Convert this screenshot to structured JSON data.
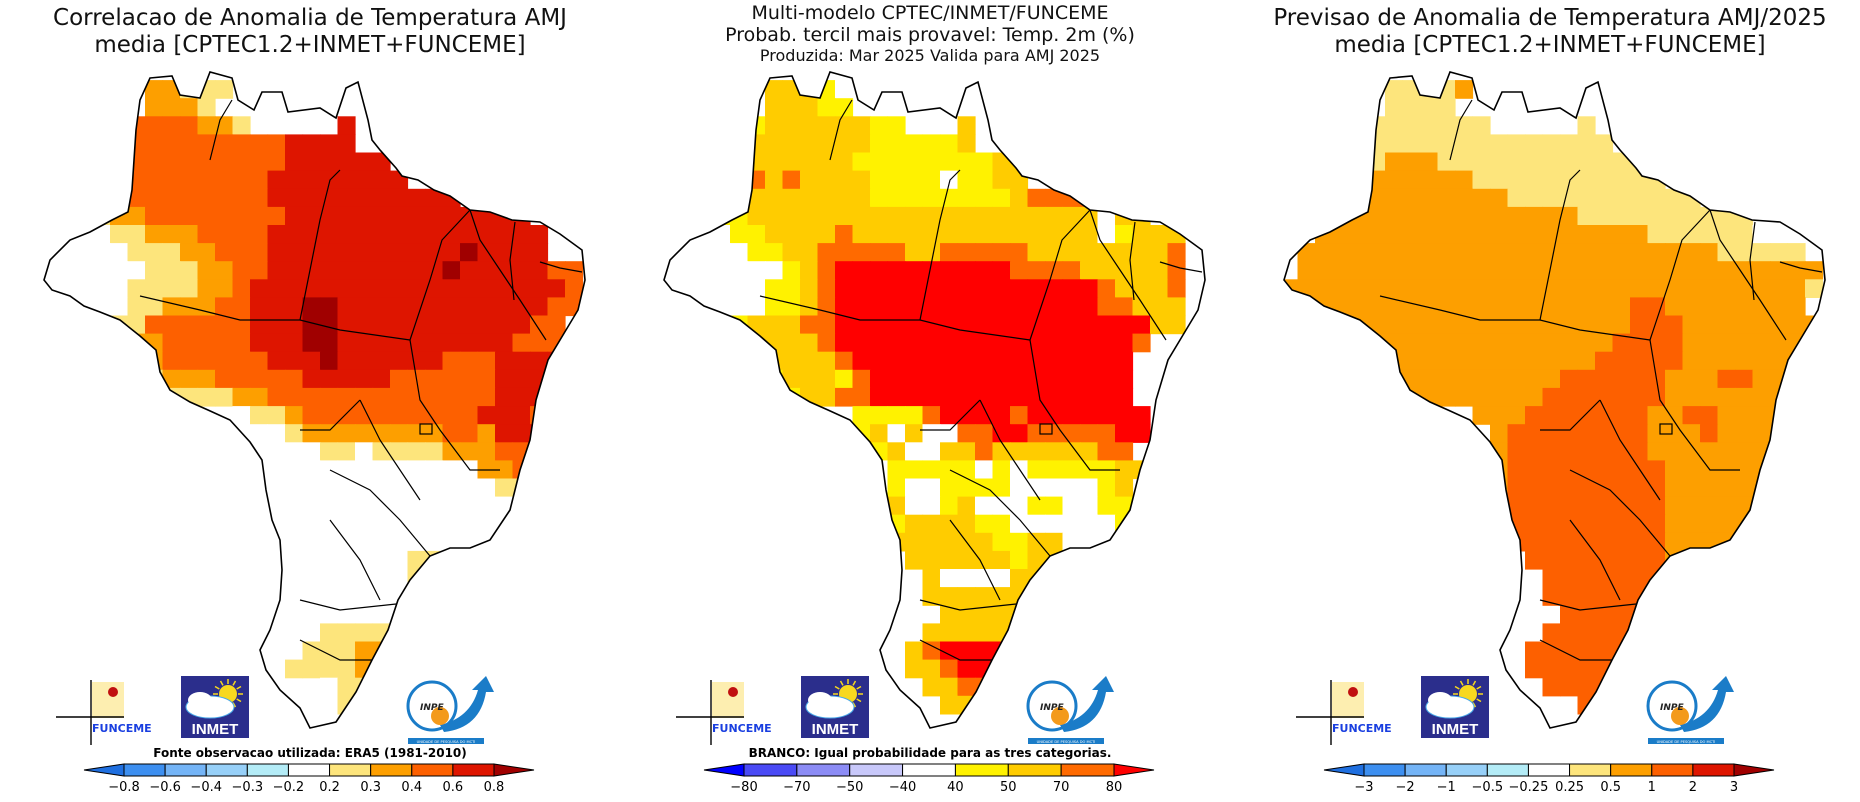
{
  "chart_data": [
    {
      "type": "heatmap",
      "id": "correlation",
      "title": [
        "Correlacao de Anomalia de Temperatura AMJ",
        "media [CPTEC1.2+INMET+FUNCEME]"
      ],
      "note": "Fonte observacao utilizada: ERA5 (1981-2010)",
      "colorbar": {
        "ticks": [
          "-0.8",
          "-0.6",
          "-0.4",
          "-0.3",
          "-0.2",
          "0.2",
          "0.3",
          "0.4",
          "0.6",
          "0.8"
        ],
        "colors": [
          "#1f6fe0",
          "#3d8ff0",
          "#74b4f6",
          "#97d0f8",
          "#b4ecf7",
          "#ffffff",
          "#fde57c",
          "#fd9f00",
          "#fd6000",
          "#de1500",
          "#a00000"
        ]
      },
      "legend_keys": {
        ".": "outside",
        "W": "#ffffff",
        "1": "#fde57c",
        "2": "#fd9f00",
        "3": "#fd6000",
        "4": "#de1500",
        "5": "#a00000"
      },
      "grid": [
        "................................",
        "......22111.....................",
        "......2221......................",
        "...233333221.....4..............",
        "..2333333333334444..............",
        "..233333333333444444............",
        "..2233333333344444444...........",
        "..1233333333344444444444........",
        "..11223333333344444444444444....",
        "..WW1122233334444444444444444...",
        ".WWWW111223334444444444454444...",
        ".WWWWW1112233444444444454444433.",
        "WWWWW11112234444444444444444443.",
        "WWWWW11222334445544444444444433.",
        "WWWW11333333444554444444444433..",
        "...1122333334445544444444443333.",
        "....112333333444544444433344443.",
        ".....11222333334444433333344443.",
        "......11111223333333333333444...",
        "...........W112333333333344433..",
        "............WW122222222332444...",
        ".............WWW11W1111222333...",
        "..............WWWWWWWWWWW2233...",
        "..............WWWWWWWWWWWW11....",
        "..............WWWWWWWWWWWWW.....",
        "...............WWWWWWWWWWWW.....",
        "...............WWWWWWWWWWW......",
        "................WWWWW11WW.......",
        "................WWWWW11W........",
        "................WWWWWW1.........",
        "................WWWWWW1.........",
        "...............W11111W1.........",
        "..............W111221...........",
        "..............11112211..........",
        "................W1111...........",
        ".................11.............",
        "................................"
      ]
    },
    {
      "type": "heatmap",
      "id": "tercile-probability",
      "title": [
        "Multi-modelo CPTEC/INMET/FUNCEME",
        "Probab. tercil mais provavel: Temp. 2m (%)",
        "Produzida: Mar 2025  Valida para AMJ 2025"
      ],
      "note": "BRANCO: Igual probabilidade para as tres categorias.",
      "colorbar": {
        "ticks": [
          "-80",
          "-70",
          "-50",
          "-40",
          "40",
          "50",
          "70",
          "80"
        ],
        "colors": [
          "#0000ff",
          "#4a4af5",
          "#8c8cf5",
          "#c8c8fa",
          "#ffffff",
          "#fff200",
          "#ffcc00",
          "#ff6a00",
          "#ff0000"
        ]
      },
      "legend_keys": {
        ".": "outside",
        "W": "#ffffff",
        "1": "#fff200",
        "2": "#ffcc00",
        "3": "#ff6a00",
        "4": "#ff0000"
      },
      "grid": [
        "................................",
        "......2221W.....................",
        "......22211.....................",
        "...11122222211...2..............",
        "..1122222222111112..............",
        "..1222222221111111122...........",
        "..11232322221111W1122...........",
        "..11222222221111111123333.......",
        "..W1122222222222222222222W22....",
        "..WW112222322222222222222W1222..",
        ".WWWW1122333332233333222222223..",
        ".WWWWWW12344444444443333222223..",
        "WWWWWW112344444444444444432223..",
        "WWWWWW112344444444444444433222..",
        "WWWW12223344444444444444444422..",
        "...1222223444444444444444443....",
        "....11222234444444444444444.....",
        ".....1122213444444444444444.....",
        "......112233444444444444444.....",
        "...........11113444434444444....",
        "...........12W2WW33443333344....",
        "............12WW22322222233.....",
        "............W11111W1W11111222...",
        "............W1WW1111WWWWW12.....",
        "............12WW12WWW11WW11.....",
        "............11222211WWWWWW1.....",
        ".............2222221122WWW......",
        "..............2222221222W1......",
        "...............2WWWW221.........",
        "...............222222321........",
        "................22222222........",
        "...............22222222.........",
        "..............2344442222........",
        "..............22344442..........",
        "...............2233322..........",
        "................2222............",
        "................................"
      ]
    },
    {
      "type": "heatmap",
      "id": "temperature-anomaly-forecast",
      "title": [
        "Previsao de Anomalia de Temperatura AMJ/2025",
        "media [CPTEC1.2+INMET+FUNCEME]"
      ],
      "note": "",
      "colorbar": {
        "ticks": [
          "-3",
          "-2",
          "-1",
          "-0.5",
          "-0.25",
          "0.25",
          "0.5",
          "1",
          "2",
          "3"
        ],
        "colors": [
          "#1f6fe0",
          "#3d8ff0",
          "#74b4f6",
          "#97d0f8",
          "#b4ecf7",
          "#ffffff",
          "#fde57c",
          "#fd9f00",
          "#fd6000",
          "#de1500",
          "#a00000"
        ]
      },
      "legend_keys": {
        ".": "outside",
        "W": "#ffffff",
        "1": "#fde57c",
        "2": "#fd9f00",
        "3": "#fd6000",
        "4": "#de1500",
        "5": "#a00000"
      },
      "grid": [
        "................................",
        "......11112.....................",
        "......1111......................",
        "...111111111.....1..............",
        "..11111111111111111.............",
        "..1111222111111111111...........",
        "..11222222211111111111..........",
        "..1222222222211111111111........",
        "..1222222222222221111111111.....",
        "..2222222222222222222111111W....",
        ".22222222222222222222222211111..",
        ".222222222222222222222222222222.",
        "2222222222222222222222222222221.",
        "222222222222222222223322222222..",
        "22222222222222222222333222222221",
        "...22222222222222223333222222221",
        "....22222222222222333332222222..",
        ".....22222222222333333222332222.",
        "......22222222233333332222222...",
        "...........2223333333223322222..",
        "............23333333322232222...",
        "............2333333332222222....",
        "............233333333322222222..",
        "............23333333332222222...",
        "............23333333332222222...",
        "............33333333332222222...",
        ".............3333333332222221...",
        "..............33333333222.......",
        "...............33333333322......",
        "...............33333333322......",
        "................333333332.......",
        "...............33333333332......",
        "..............333333333332......",
        "..............33333333332.......",
        "...............3333333..........",
        ".................333............",
        "................................"
      ]
    }
  ],
  "logos": {
    "funceme_label": "FUNCEME",
    "inmet_label": "INMET",
    "inpe_label": "INPE",
    "inpe_subtitle": "UNIDADE DE PESQUISA DO MCTI"
  }
}
